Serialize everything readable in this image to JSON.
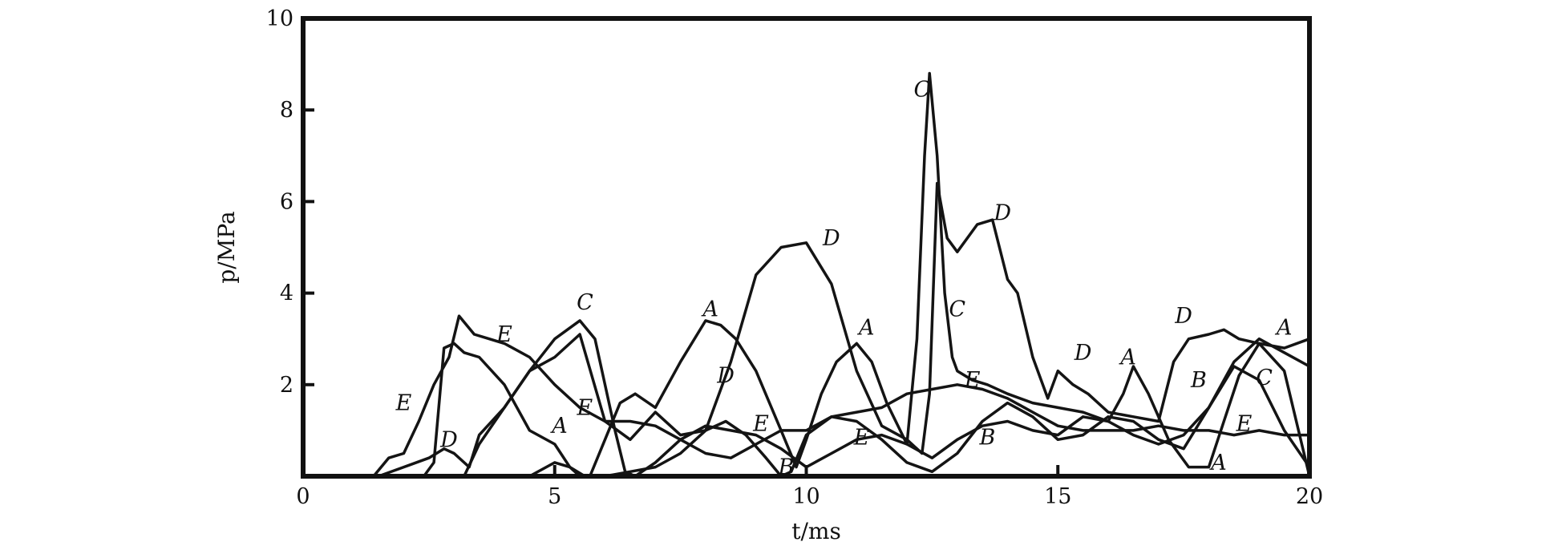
{
  "chart_data": {
    "type": "line",
    "xlabel": "t/ms",
    "ylabel": "p/MPa",
    "xlim": [
      0,
      20
    ],
    "ylim": [
      0,
      10
    ],
    "x_ticks": [
      0,
      5,
      10,
      15,
      20
    ],
    "y_ticks": [
      2,
      4,
      6,
      8,
      10
    ],
    "x_tick_labels": [
      "0",
      "5",
      "10",
      "15",
      "20"
    ],
    "y_tick_labels": [
      "2",
      "4",
      "6",
      "8",
      "10"
    ],
    "grid": false,
    "legend": "none",
    "line_color": "#141414",
    "series": [
      {
        "name": "A",
        "x": [
          0,
          2.4,
          2.6,
          2.8,
          3.0,
          3.2,
          3.5,
          4.0,
          4.5,
          5.0,
          5.3,
          5.5,
          5.7,
          6.0,
          6.3,
          6.6,
          7.0,
          7.5,
          8.0,
          8.3,
          8.6,
          9.0,
          9.5,
          9.8,
          10.0,
          10.3,
          10.6,
          11.0,
          11.3,
          11.6,
          12.0,
          12.5,
          13.0,
          13.5,
          14.0,
          14.5,
          15.0,
          15.5,
          16.0,
          16.3,
          16.5,
          16.8,
          17.2,
          17.6,
          18.0,
          18.3,
          18.6,
          19.0,
          19.5,
          20.0
        ],
        "y": [
          0,
          0,
          0.3,
          2.8,
          2.9,
          2.7,
          2.6,
          2.0,
          1.0,
          0.7,
          0.2,
          0.0,
          0.0,
          0.8,
          1.6,
          1.8,
          1.5,
          2.5,
          3.4,
          3.3,
          3.0,
          2.3,
          1.0,
          0.2,
          0.8,
          1.8,
          2.5,
          2.9,
          2.5,
          1.6,
          0.7,
          0.4,
          0.8,
          1.1,
          1.2,
          1.0,
          0.9,
          1.3,
          1.2,
          1.8,
          2.4,
          1.8,
          0.8,
          0.2,
          0.2,
          1.2,
          2.2,
          2.9,
          2.8,
          3.0
        ]
      },
      {
        "name": "B",
        "x": [
          0,
          4.5,
          5.0,
          5.3,
          5.6,
          6.0,
          6.5,
          7.0,
          7.5,
          8.0,
          8.4,
          8.8,
          9.2,
          9.5,
          9.7,
          10.0,
          10.5,
          11.0,
          11.5,
          12.0,
          12.5,
          13.0,
          13.5,
          14.0,
          14.5,
          15.0,
          15.5,
          16.0,
          16.5,
          17.0,
          17.5,
          18.0,
          18.5,
          19.0,
          19.5,
          20.0
        ],
        "y": [
          0,
          0,
          0.3,
          0.2,
          0,
          0,
          0.1,
          0.2,
          0.5,
          1.0,
          1.2,
          0.9,
          0.4,
          0.0,
          0.1,
          0.9,
          1.3,
          1.2,
          0.8,
          0.3,
          0.1,
          0.5,
          1.2,
          1.6,
          1.3,
          0.8,
          0.9,
          1.3,
          1.2,
          0.8,
          0.6,
          1.5,
          2.4,
          2.1,
          1.0,
          0.2
        ]
      },
      {
        "name": "C",
        "x": [
          0,
          3.2,
          3.5,
          4.0,
          4.5,
          5.0,
          5.5,
          5.8,
          6.0,
          6.2,
          6.4,
          6.6,
          7.0,
          7.5,
          8.0,
          8.5,
          9.0,
          9.5,
          10.0,
          10.5,
          11.0,
          11.5,
          12.0,
          12.2,
          12.35,
          12.45,
          12.6,
          12.75,
          12.9,
          13.0,
          13.3,
          13.6,
          14.0,
          14.5,
          15.0,
          15.5,
          16.0,
          16.5,
          17.0,
          17.5,
          18.0,
          18.5,
          19.0,
          19.5,
          20.0
        ],
        "y": [
          0,
          0,
          0.7,
          1.5,
          2.3,
          3.0,
          3.4,
          3.0,
          2.0,
          1.0,
          0.1,
          0.0,
          0.3,
          0.8,
          1.1,
          1.0,
          0.9,
          0.6,
          0.2,
          0.5,
          0.8,
          0.9,
          0.7,
          3.0,
          7.0,
          8.8,
          7.0,
          4.0,
          2.6,
          2.3,
          2.1,
          2.0,
          1.8,
          1.6,
          1.5,
          1.4,
          1.2,
          0.9,
          0.7,
          0.9,
          1.5,
          2.5,
          3.0,
          2.7,
          2.4
        ]
      },
      {
        "name": "D",
        "x": [
          0,
          1.5,
          2.0,
          2.5,
          2.8,
          3.0,
          3.3,
          3.5,
          4.0,
          4.5,
          5.0,
          5.5,
          6.0,
          6.5,
          7.0,
          7.5,
          8.0,
          8.5,
          9.0,
          9.5,
          10.0,
          10.5,
          11.0,
          11.5,
          12.0,
          12.3,
          12.45,
          12.6,
          12.8,
          13.0,
          13.4,
          13.7,
          14.0,
          14.2,
          14.5,
          14.8,
          15.0,
          15.3,
          15.6,
          16.0,
          16.5,
          17.0,
          17.3,
          17.6,
          18.0,
          18.3,
          18.6,
          19.0,
          19.5,
          20.0
        ],
        "y": [
          0,
          0,
          0.2,
          0.4,
          0.6,
          0.5,
          0.2,
          0.9,
          1.5,
          2.3,
          2.6,
          3.1,
          1.2,
          0.8,
          1.4,
          0.9,
          1.0,
          2.5,
          4.4,
          5.0,
          5.1,
          4.2,
          2.3,
          1.1,
          0.8,
          0.5,
          1.8,
          6.4,
          5.2,
          4.9,
          5.5,
          5.6,
          4.3,
          4.0,
          2.6,
          1.7,
          2.3,
          2.0,
          1.8,
          1.4,
          1.3,
          1.2,
          2.5,
          3.0,
          3.1,
          3.2,
          3.0,
          2.9,
          2.3,
          0.0
        ]
      },
      {
        "name": "E",
        "x": [
          0,
          1.4,
          1.7,
          2.0,
          2.3,
          2.6,
          2.9,
          3.1,
          3.4,
          3.7,
          4.0,
          4.5,
          5.0,
          5.5,
          6.0,
          6.5,
          7.0,
          7.5,
          8.0,
          8.5,
          9.0,
          9.5,
          10.0,
          10.5,
          11.0,
          11.5,
          12.0,
          12.5,
          13.0,
          13.5,
          14.0,
          14.5,
          15.0,
          15.5,
          16.0,
          16.5,
          17.0,
          17.5,
          18.0,
          18.5,
          19.0,
          19.5,
          20.0
        ],
        "y": [
          0,
          0,
          0.4,
          0.5,
          1.2,
          2.0,
          2.6,
          3.5,
          3.1,
          3.0,
          2.9,
          2.6,
          2.0,
          1.5,
          1.2,
          1.2,
          1.1,
          0.8,
          0.5,
          0.4,
          0.7,
          1.0,
          1.0,
          1.3,
          1.4,
          1.5,
          1.8,
          1.9,
          2.0,
          1.9,
          1.7,
          1.4,
          1.1,
          1.0,
          1.0,
          1.0,
          1.1,
          1.0,
          1.0,
          0.9,
          1.0,
          0.9,
          0.9
        ]
      }
    ],
    "annotations": [
      {
        "text": "A",
        "x": 8.1,
        "y": 3.65
      },
      {
        "text": "A",
        "x": 11.2,
        "y": 3.25
      },
      {
        "text": "A",
        "x": 5.1,
        "y": 1.1
      },
      {
        "text": "A",
        "x": 16.4,
        "y": 2.6
      },
      {
        "text": "A",
        "x": 19.5,
        "y": 3.25
      },
      {
        "text": "A",
        "x": 18.2,
        "y": 0.3
      },
      {
        "text": "B",
        "x": 9.6,
        "y": 0.2
      },
      {
        "text": "B",
        "x": 13.6,
        "y": 0.85
      },
      {
        "text": "B",
        "x": 17.8,
        "y": 2.1
      },
      {
        "text": "C",
        "x": 5.6,
        "y": 3.8
      },
      {
        "text": "C",
        "x": 12.3,
        "y": 8.45
      },
      {
        "text": "C",
        "x": 13.0,
        "y": 3.65
      },
      {
        "text": "C",
        "x": 19.1,
        "y": 2.15
      },
      {
        "text": "D",
        "x": 10.5,
        "y": 5.2
      },
      {
        "text": "D",
        "x": 13.9,
        "y": 5.75
      },
      {
        "text": "D",
        "x": 8.4,
        "y": 2.2
      },
      {
        "text": "D",
        "x": 2.9,
        "y": 0.8
      },
      {
        "text": "D",
        "x": 15.5,
        "y": 2.7
      },
      {
        "text": "D",
        "x": 17.5,
        "y": 3.5
      },
      {
        "text": "E",
        "x": 4.0,
        "y": 3.1
      },
      {
        "text": "E",
        "x": 2.0,
        "y": 1.6
      },
      {
        "text": "E",
        "x": 5.6,
        "y": 1.5
      },
      {
        "text": "E",
        "x": 9.1,
        "y": 1.15
      },
      {
        "text": "E",
        "x": 11.1,
        "y": 0.85
      },
      {
        "text": "E",
        "x": 13.3,
        "y": 2.1
      },
      {
        "text": "E",
        "x": 18.7,
        "y": 1.15
      }
    ]
  }
}
